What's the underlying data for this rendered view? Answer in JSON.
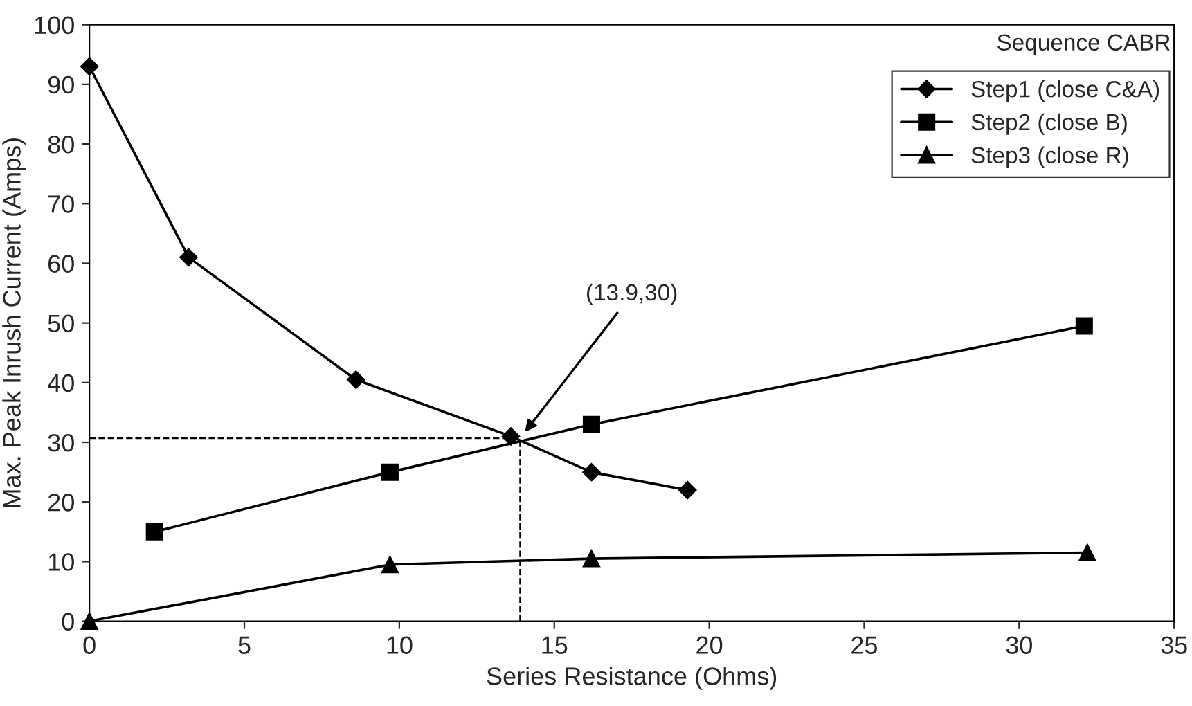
{
  "chart_data": {
    "type": "line",
    "xlabel": "Series Resistance (Ohms)",
    "ylabel": "Max. Peak Inrush Current (Amps)",
    "legend_title": "Sequence CABR",
    "legend": "top right",
    "grid": false,
    "line_style": "solid",
    "xlim": [
      0,
      35
    ],
    "xticks": [
      0,
      5,
      10,
      15,
      20,
      25,
      30,
      35
    ],
    "ylim": [
      0,
      100
    ],
    "yticks": [
      0,
      10,
      20,
      30,
      40,
      50,
      60,
      70,
      80,
      90,
      100
    ],
    "series": [
      {
        "name": "Step1 (close C&A)",
        "color": "#000000",
        "marker": "diamond",
        "x": [
          0,
          3.2,
          8.6,
          13.6,
          16.2,
          19.3
        ],
        "values": [
          93,
          61,
          40.5,
          31,
          25,
          22
        ]
      },
      {
        "name": "Step2 (close B)",
        "color": "#000000",
        "marker": "square",
        "x": [
          2.1,
          9.7,
          16.2,
          32.1
        ],
        "values": [
          15,
          25,
          33,
          49.5
        ]
      },
      {
        "name": "Step3 (close R)",
        "color": "#000000",
        "marker": "triangle",
        "x": [
          0,
          9.7,
          16.2,
          32.2
        ],
        "values": [
          0,
          9.5,
          10.5,
          11.5
        ]
      }
    ],
    "ref_lines": [
      {
        "axis": "x",
        "value": 13.9,
        "line_style": "dashed",
        "color": "#000000"
      },
      {
        "axis": "y",
        "value": 30.7,
        "line_style": "dashed",
        "color": "#000000"
      }
    ],
    "annotations": [
      "(13.9,30)"
    ]
  }
}
